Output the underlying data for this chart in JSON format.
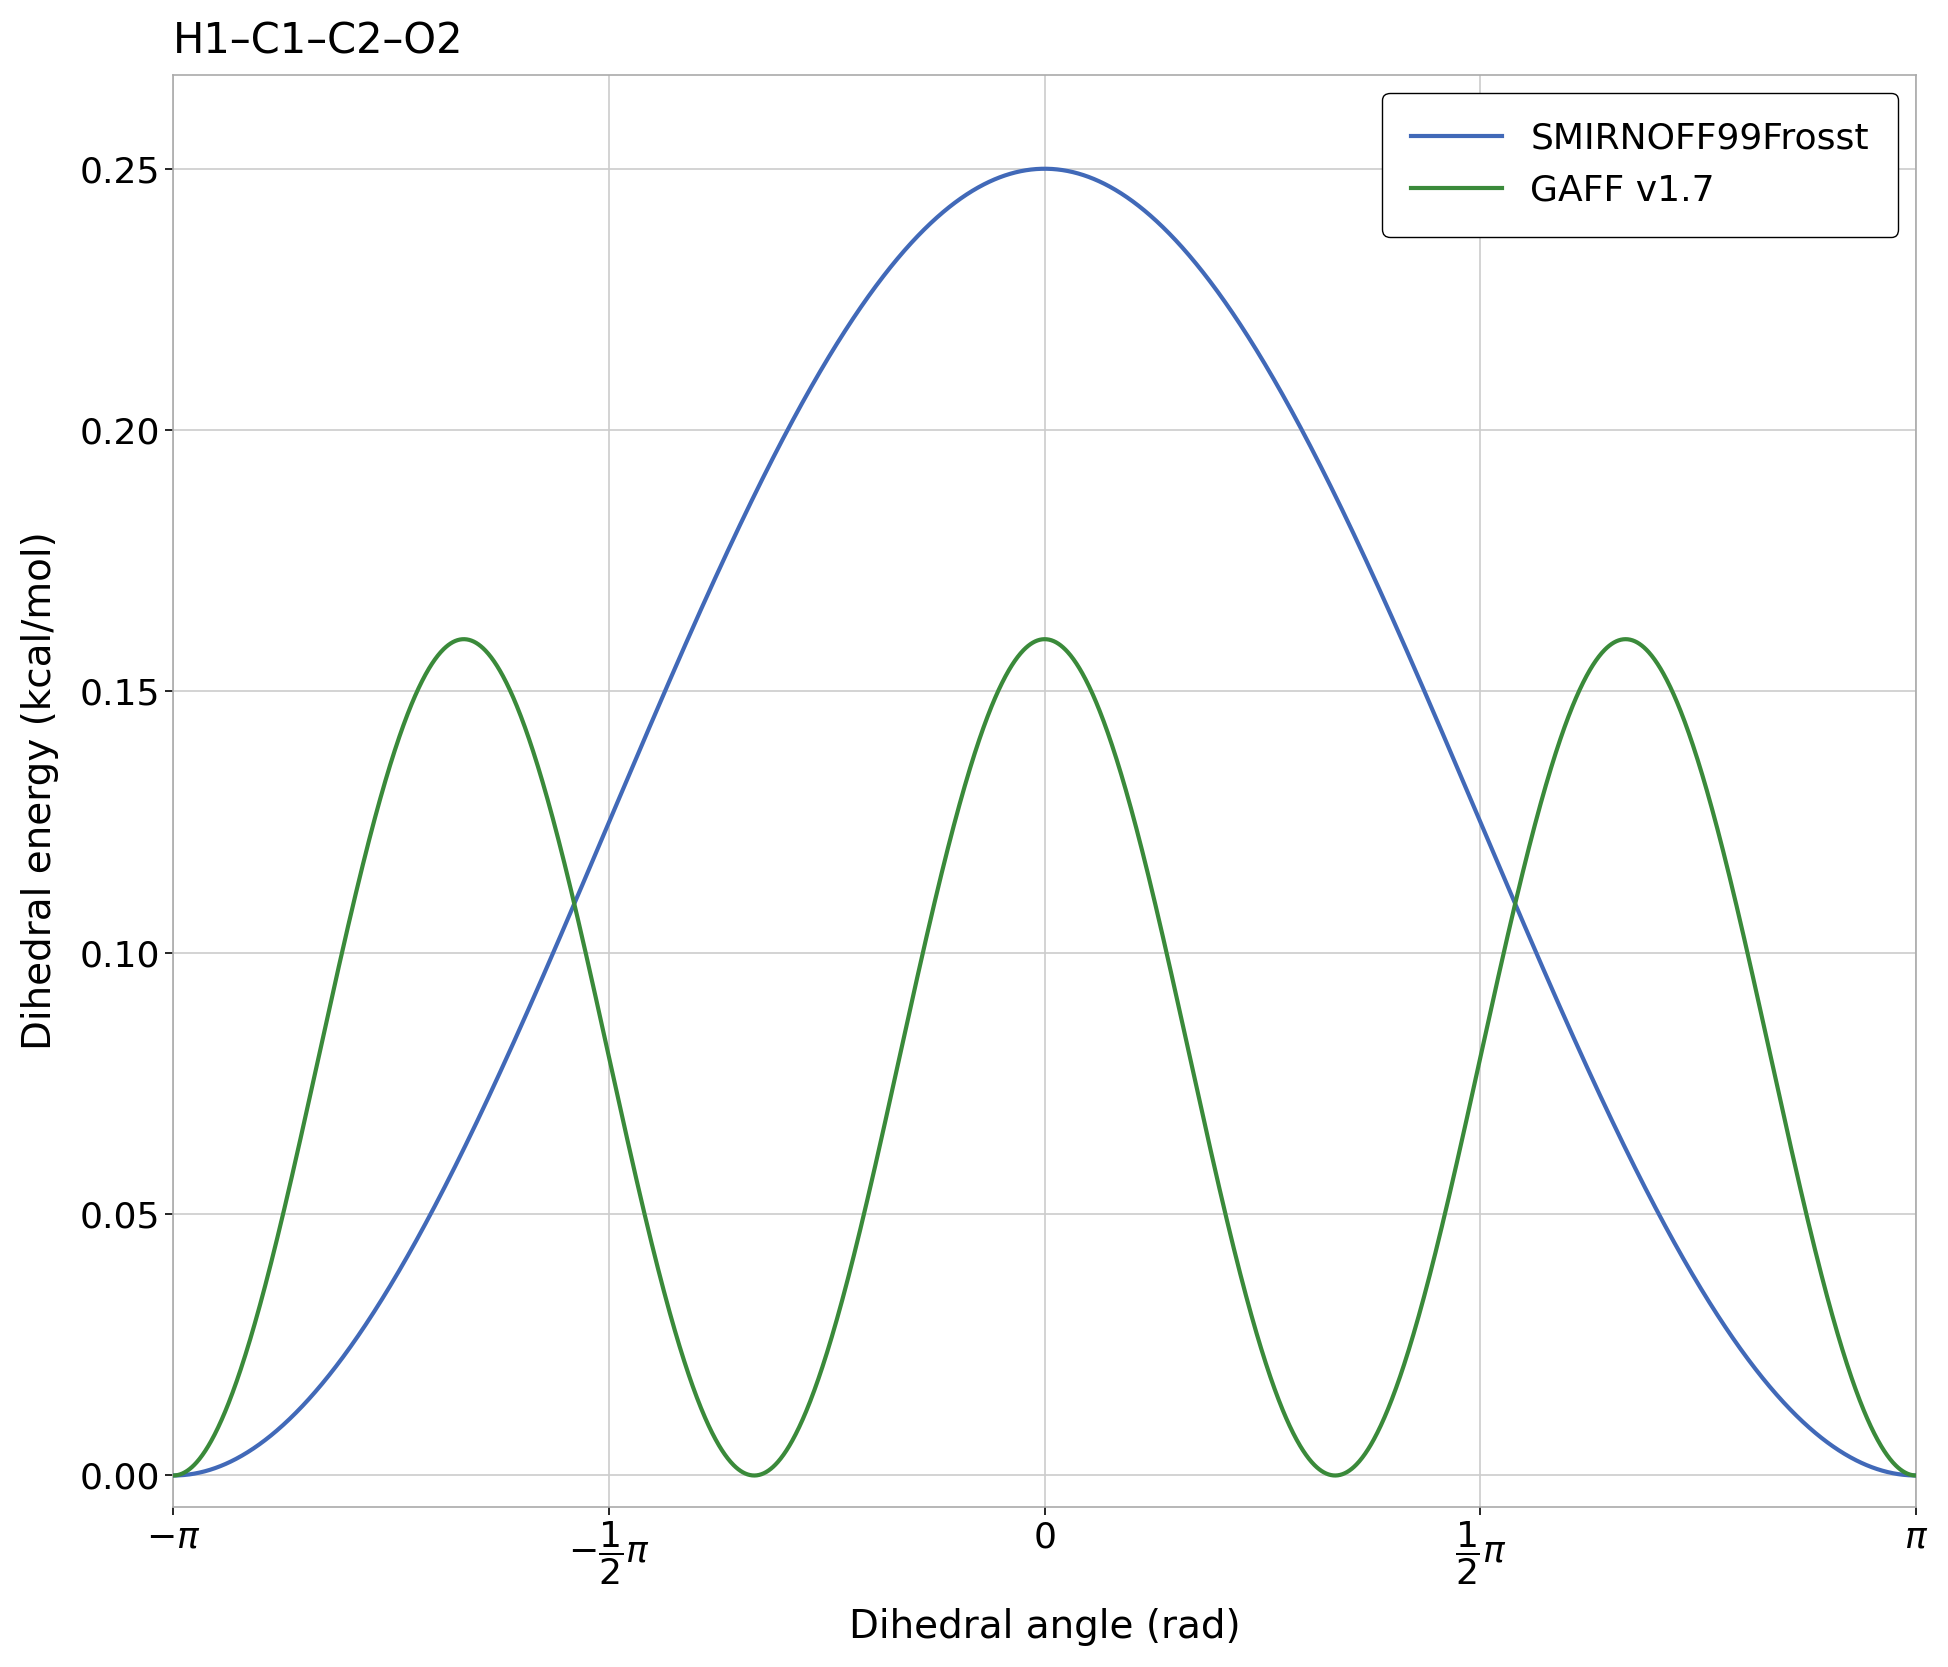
{
  "title": "H1–C1–C2–O2",
  "xlabel": "Dihedral angle (rad)",
  "ylabel": "Dihedral energy (kcal/mol)",
  "blue_label": "SMIRNOFF99Frosst",
  "green_label": "GAFF v1.7",
  "blue_color": "#4169b8",
  "green_color": "#3a8a3a",
  "blue_amplitude": 0.25,
  "blue_periodicity": 1,
  "green_amplitude": 0.16,
  "green_periodicity": 3,
  "xlim": [
    -3.14159265358979,
    3.14159265358979
  ],
  "ylim": [
    -0.006,
    0.268
  ],
  "xtick_values": [
    -3.14159265358979,
    -1.5707963267949,
    0,
    1.5707963267949,
    3.14159265358979
  ],
  "ytick_values": [
    0.0,
    0.05,
    0.1,
    0.15,
    0.2,
    0.25
  ],
  "line_width": 3.0,
  "title_fontsize": 30,
  "label_fontsize": 28,
  "tick_fontsize": 26,
  "legend_fontsize": 26,
  "background_color": "#ffffff",
  "plot_background_color": "#ffffff",
  "grid_color": "#cccccc",
  "figsize": [
    19.49,
    16.67
  ],
  "dpi": 100
}
